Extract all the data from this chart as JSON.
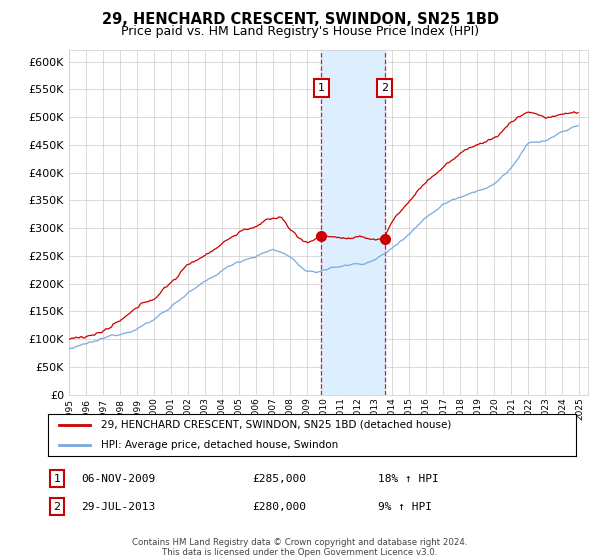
{
  "title": "29, HENCHARD CRESCENT, SWINDON, SN25 1BD",
  "subtitle": "Price paid vs. HM Land Registry's House Price Index (HPI)",
  "ylim": [
    0,
    620000
  ],
  "yticks": [
    0,
    50000,
    100000,
    150000,
    200000,
    250000,
    300000,
    350000,
    400000,
    450000,
    500000,
    550000,
    600000
  ],
  "xlim_start": 1995,
  "xlim_end": 2025.5,
  "sale1_date": "06-NOV-2009",
  "sale1_price": 285000,
  "sale1_year": 2009.833,
  "sale1_hpi_pct": "18%",
  "sale2_date": "29-JUL-2013",
  "sale2_price": 280000,
  "sale2_year": 2013.542,
  "sale2_hpi_pct": "9%",
  "legend_line1": "29, HENCHARD CRESCENT, SWINDON, SN25 1BD (detached house)",
  "legend_line2": "HPI: Average price, detached house, Swindon",
  "footer": "Contains HM Land Registry data © Crown copyright and database right 2024.\nThis data is licensed under the Open Government Licence v3.0.",
  "hpi_color": "#7aaadd",
  "sale_color": "#cc0000",
  "span_color": "#ddeeff",
  "background_color": "#ffffff",
  "grid_color": "#cccccc"
}
